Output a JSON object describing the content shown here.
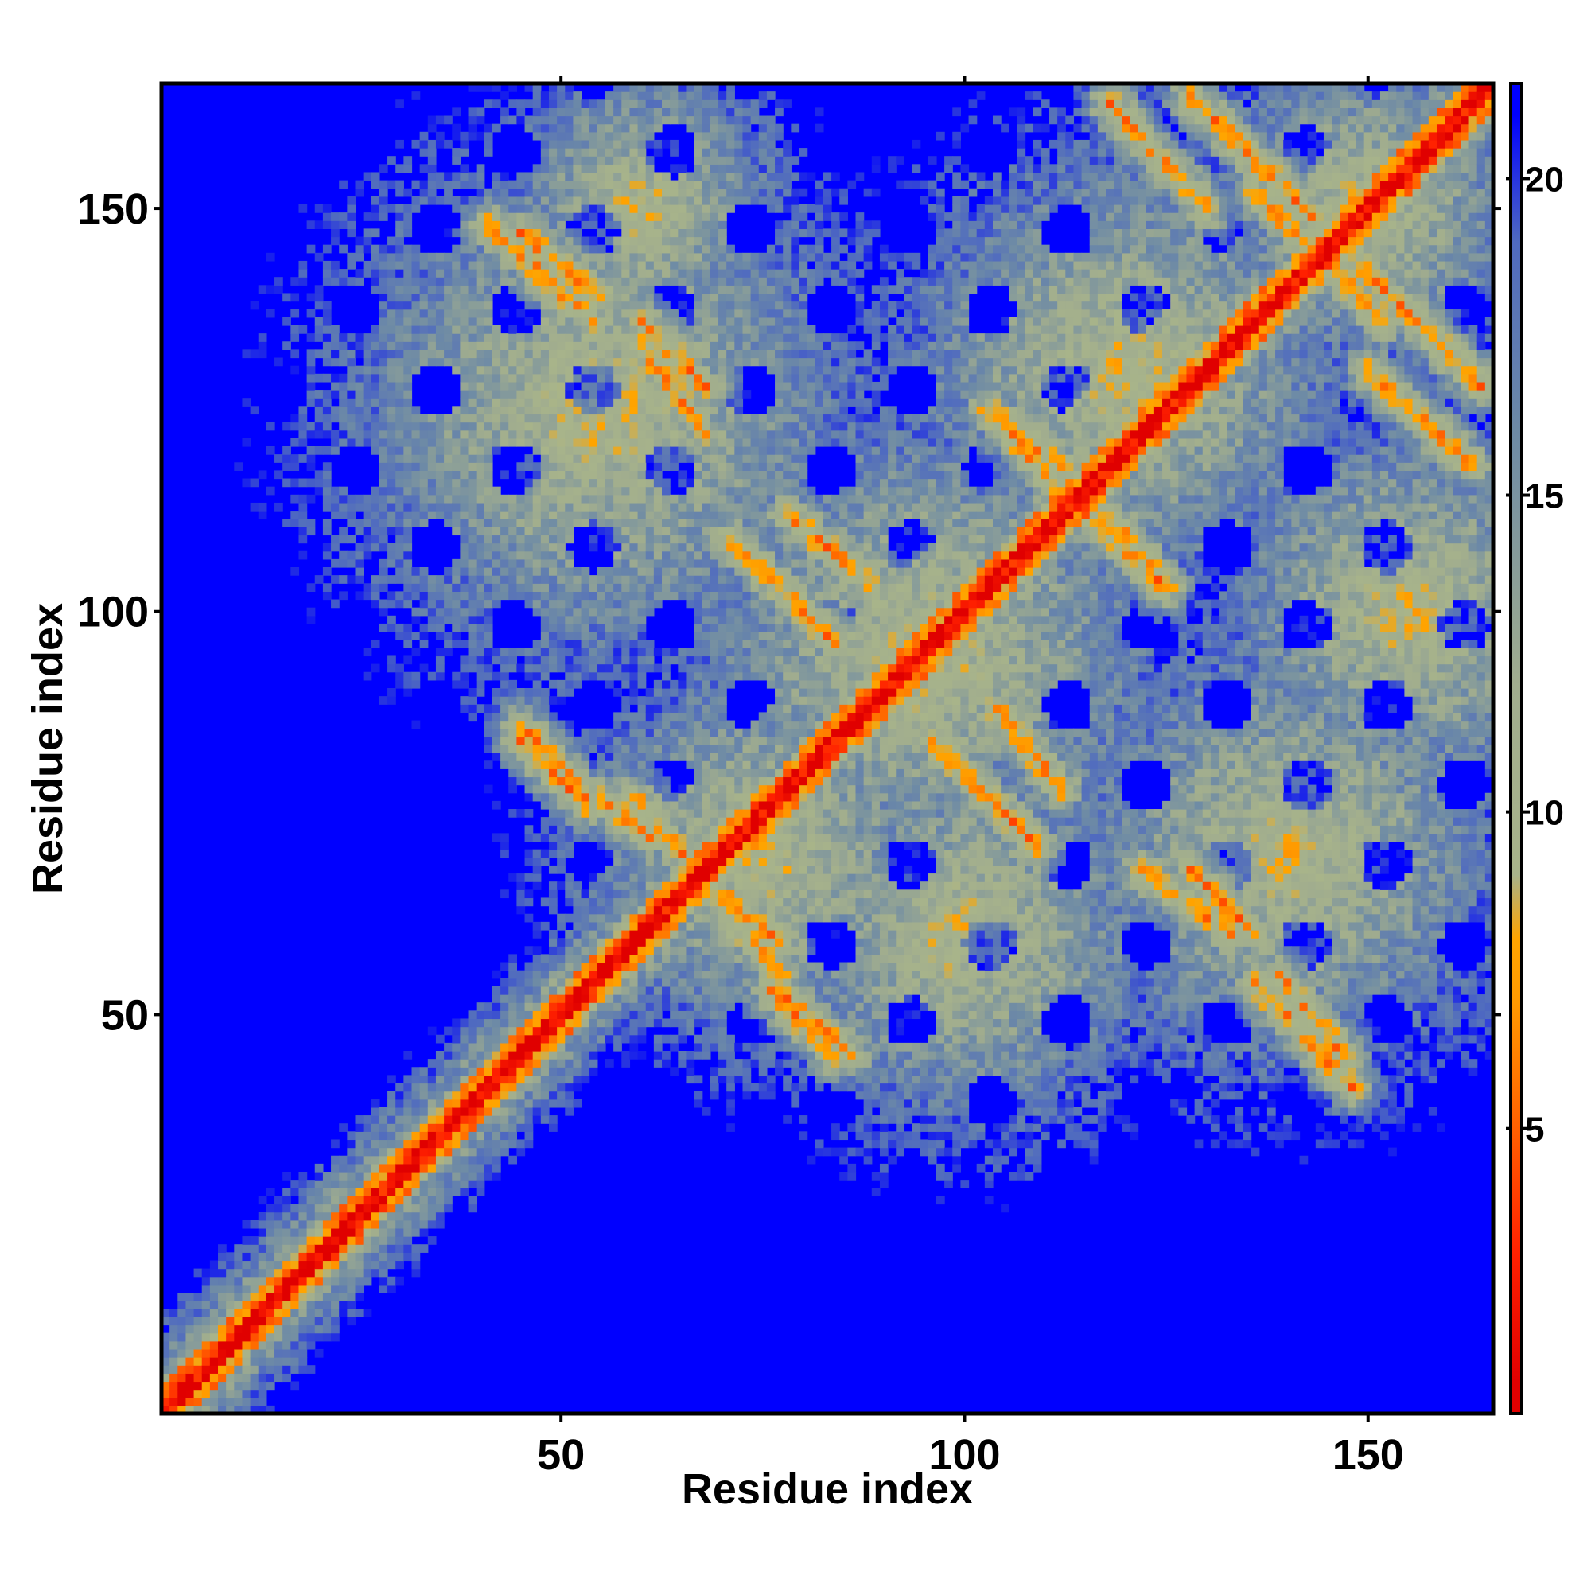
{
  "chart_data": {
    "type": "heatmap",
    "title": "",
    "xlabel": "Residue index",
    "ylabel": "Residue index",
    "n_residues": 165,
    "xlim": [
      1,
      165
    ],
    "ylim": [
      1,
      165
    ],
    "xticks": [
      50,
      100,
      150
    ],
    "yticks": [
      50,
      100,
      150
    ],
    "colorbar": {
      "range": [
        0.5,
        21.5
      ],
      "ticks": [
        5,
        10,
        15,
        20
      ],
      "stops": [
        {
          "value": 1,
          "color": "#e00000"
        },
        {
          "value": 3,
          "color": "#ff2000"
        },
        {
          "value": 5,
          "color": "#ff6000"
        },
        {
          "value": 7,
          "color": "#ff9a00"
        },
        {
          "value": 8,
          "color": "#ffa500"
        },
        {
          "value": 9,
          "color": "#a8b48a"
        },
        {
          "value": 12,
          "color": "#a1ad8e"
        },
        {
          "value": 16,
          "color": "#6d8aa6"
        },
        {
          "value": 19,
          "color": "#4f6ac0"
        },
        {
          "value": 21,
          "color": "#0000ff"
        }
      ]
    },
    "background_value": 21,
    "secondary_structure_contacts": [
      {
        "anchor": [
          41,
          148
        ],
        "end": [
          54,
          136
        ],
        "kind": "antiparallel",
        "note": "orange diagonal band"
      },
      {
        "anchor": [
          60,
          133
        ],
        "end": [
          68,
          122
        ],
        "kind": "antiparallel"
      },
      {
        "anchor": [
          71,
          109
        ],
        "end": [
          84,
          96
        ],
        "kind": "antiparallel"
      },
      {
        "anchor": [
          45,
          86
        ],
        "end": [
          53,
          77
        ],
        "kind": "antiparallel"
      },
      {
        "anchor": [
          59,
          77
        ],
        "end": [
          65,
          70
        ],
        "kind": "antiparallel"
      },
      {
        "anchor": [
          72,
          61
        ],
        "end": [
          77,
          55
        ],
        "kind": "antiparallel"
      },
      {
        "anchor": [
          76,
          53
        ],
        "end": [
          84,
          45
        ],
        "kind": "antiparallel"
      },
      {
        "anchor": [
          104,
          88
        ],
        "end": [
          112,
          78
        ],
        "kind": "antiparallel"
      },
      {
        "anchor": [
          128,
          68
        ],
        "end": [
          136,
          60
        ],
        "kind": "antiparallel"
      },
      {
        "anchor": [
          139,
          55
        ],
        "end": [
          147,
          45
        ],
        "kind": "antiparallel"
      },
      {
        "anchor": [
          128,
          164
        ],
        "end": [
          143,
          149
        ],
        "kind": "antiparallel"
      },
      {
        "anchor": [
          143,
          145
        ],
        "end": [
          152,
          136
        ],
        "kind": "antiparallel"
      },
      {
        "anchor": [
          150,
          130
        ],
        "end": [
          163,
          118
        ],
        "kind": "antiparallel"
      },
      {
        "anchor": [
          104,
          124
        ],
        "end": [
          112,
          115
        ],
        "kind": "antiparallel"
      },
      {
        "anchor": [
          118,
          112
        ],
        "end": [
          125,
          103
        ],
        "kind": "antiparallel"
      }
    ]
  }
}
